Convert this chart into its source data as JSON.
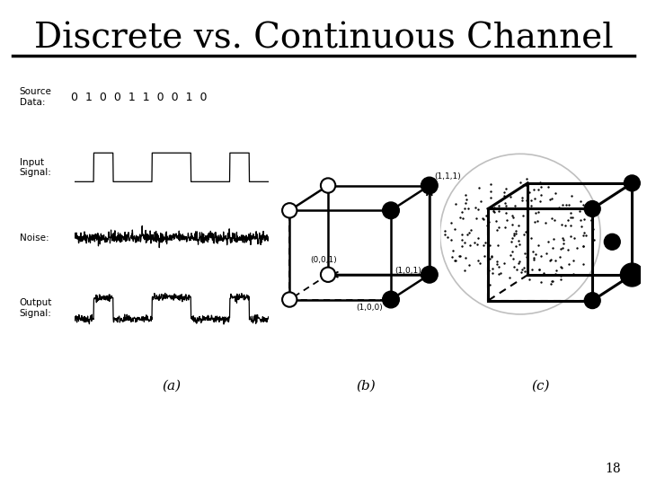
{
  "title": "Discrete vs. Continuous Channel",
  "title_fontsize": 28,
  "background_color": "#ffffff",
  "source_data_label": "Source\nData:",
  "source_data_bits": "0  1  0  0  1  1  0  0  1  0",
  "input_signal_label": "Input\nSignal:",
  "noise_label": "Noise:",
  "output_signal_label": "Output\nSignal:",
  "panel_a_label": "(a)",
  "panel_b_label": "(b)",
  "panel_c_label": "(c)",
  "page_number": "18"
}
